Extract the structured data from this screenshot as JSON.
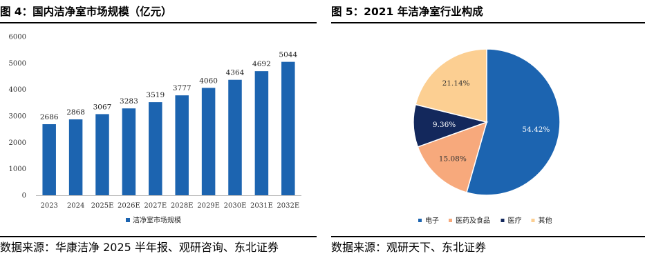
{
  "left": {
    "title": "图 4：国内洁净室市场规模（亿元）",
    "source": "数据来源：华康洁净 2025 半年报、观研咨询、东北证券"
  },
  "right": {
    "title": "图 5：2021 年洁净室行业构成",
    "source": "数据来源：观研天下、东北证券"
  },
  "chart_data": [
    {
      "type": "bar",
      "title": "国内洁净室市场规模（亿元）",
      "categories": [
        "2023",
        "2024",
        "2025E",
        "2026E",
        "2027E",
        "2028E",
        "2029E",
        "2030E",
        "2031E",
        "2032E"
      ],
      "series": [
        {
          "name": "洁净室市场规模",
          "values": [
            2686,
            2868,
            3067,
            3283,
            3519,
            3777,
            4060,
            4364,
            4692,
            5044
          ]
        }
      ],
      "ylim": [
        0,
        6000
      ],
      "yticks": [
        "0",
        "1000",
        "2000",
        "3000",
        "4000",
        "5000",
        "6000"
      ],
      "xlabel": "",
      "ylabel": "",
      "legend": "bottom",
      "colors": {
        "bar": "#1c64b0"
      }
    },
    {
      "type": "pie",
      "title": "2021 年洁净室行业构成",
      "slices": [
        {
          "label": "电子",
          "value": 54.42,
          "text": "54.42%",
          "color": "#1c64b0"
        },
        {
          "label": "医药及食品",
          "value": 15.08,
          "text": "15.08%",
          "color": "#f7a97c"
        },
        {
          "label": "医疗",
          "value": 9.36,
          "text": "9.36%",
          "color": "#13285c"
        },
        {
          "label": "其他",
          "value": 21.14,
          "text": "21.14%",
          "color": "#fccf92"
        }
      ],
      "legend": "bottom"
    }
  ]
}
